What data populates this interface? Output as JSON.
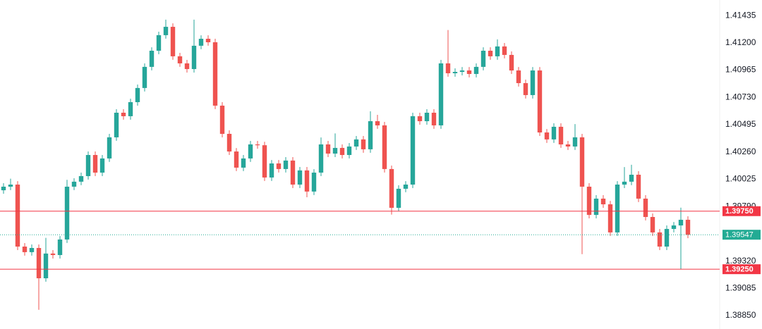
{
  "chart_data": {
    "type": "candlestick",
    "up_color": "#26a69a",
    "down_color": "#ef5350",
    "ylim": [
      1.38735,
      1.41569
    ],
    "yticks": [
      1.41435,
      {
        "value": 1.412,
        "label": "1.41200"
      },
      1.40965,
      {
        "value": 1.4073,
        "label": "1.40730"
      },
      1.40495,
      {
        "value": 1.4026,
        "label": "1.40260"
      },
      1.40025,
      {
        "value": 1.3979,
        "label": "1.39790"
      },
      {
        "value": 1.3932,
        "label": "1.39320"
      },
      1.39085,
      {
        "value": 1.3885,
        "label": "1.38850"
      }
    ],
    "levels": [
      {
        "value": 1.3975,
        "label": "1.39750",
        "color": "#f23645"
      },
      {
        "value": 1.3925,
        "label": "1.39250",
        "color": "#f23645"
      }
    ],
    "last_price": {
      "value": 1.39547,
      "color": "#22ab94"
    },
    "open": [
      1.3993,
      1.39961,
      1.39979,
      1.39445,
      1.39397,
      1.39433,
      1.39172,
      1.39385,
      1.39372,
      1.39506,
      1.39961,
      1.40004,
      1.40052,
      1.40234,
      1.40082,
      1.40204,
      1.40386,
      1.40598,
      1.40568,
      1.40689,
      1.40811,
      1.40993,
      1.41132,
      1.41266,
      1.41338,
      1.41084,
      1.41023,
      1.40974,
      1.41175,
      1.41235,
      1.41205,
      1.40659,
      1.40416,
      1.40264,
      1.40125,
      1.40204,
      1.40325,
      1.40318,
      1.4004,
      1.40161,
      1.40113,
      1.40186,
      1.39979,
      1.40101,
      1.39919,
      1.40082,
      1.40325,
      1.40246,
      1.40295,
      1.40234,
      1.40307,
      1.40368,
      1.40283,
      1.40525,
      1.40489,
      1.40113,
      1.39779,
      1.39943,
      1.39979,
      1.40568,
      1.40525,
      1.40598,
      1.40489,
      1.41023,
      1.40938,
      1.4095,
      1.40962,
      1.40932,
      1.40993,
      1.41132,
      1.41084,
      1.41169,
      1.41096,
      1.40962,
      1.40853,
      1.4075,
      1.40962,
      1.40428,
      1.40368,
      1.40477,
      1.40325,
      1.40307,
      1.40386,
      1.39961,
      1.39718,
      1.39858,
      1.39809,
      1.39567,
      1.39979,
      1.40004,
      1.40064,
      1.39858,
      1.397,
      1.39567,
      1.39445,
      1.39597,
      1.39627,
      1.39676
    ],
    "high": [
      1.39991,
      1.4003,
      1.40009,
      1.39475,
      1.39463,
      1.39463,
      1.3952,
      1.39415,
      1.39536,
      1.4002,
      1.40034,
      1.40082,
      1.40264,
      1.40264,
      1.40234,
      1.40416,
      1.40628,
      1.40628,
      1.40719,
      1.40841,
      1.41023,
      1.41162,
      1.41296,
      1.414,
      1.41368,
      1.41114,
      1.41053,
      1.414,
      1.41265,
      1.41265,
      1.41235,
      1.40689,
      1.40446,
      1.40294,
      1.40234,
      1.40355,
      1.40355,
      1.40348,
      1.40191,
      1.40191,
      1.40216,
      1.40216,
      1.40131,
      1.40131,
      1.40112,
      1.40385,
      1.40355,
      1.4042,
      1.40325,
      1.40337,
      1.40398,
      1.40398,
      1.4061,
      1.4058,
      1.40519,
      1.40143,
      1.39973,
      1.40009,
      1.40598,
      1.40598,
      1.40628,
      1.40628,
      1.41053,
      1.4131,
      1.4098,
      1.40992,
      1.40992,
      1.41023,
      1.41162,
      1.41162,
      1.4123,
      1.41199,
      1.41126,
      1.40992,
      1.40883,
      1.40992,
      1.40992,
      1.40458,
      1.40507,
      1.40507,
      1.40355,
      1.405,
      1.40416,
      1.39991,
      1.39888,
      1.39888,
      1.39839,
      1.40009,
      1.4013,
      1.4015,
      1.40094,
      1.39888,
      1.3973,
      1.39597,
      1.39627,
      1.39657,
      1.3978,
      1.39706
    ],
    "low": [
      1.399,
      1.39931,
      1.39415,
      1.39367,
      1.39367,
      1.389,
      1.39142,
      1.39342,
      1.39342,
      1.39476,
      1.39931,
      1.39974,
      1.40022,
      1.40052,
      1.40052,
      1.40174,
      1.40356,
      1.40538,
      1.40538,
      1.40659,
      1.40781,
      1.40963,
      1.41102,
      1.41236,
      1.41054,
      1.40993,
      1.40944,
      1.40944,
      1.41145,
      1.41175,
      1.40629,
      1.40386,
      1.40234,
      1.40095,
      1.40095,
      1.40174,
      1.40288,
      1.4001,
      1.4001,
      1.40083,
      1.40083,
      1.39949,
      1.39949,
      1.3987,
      1.39889,
      1.40052,
      1.40216,
      1.40216,
      1.40204,
      1.40204,
      1.40277,
      1.40253,
      1.40253,
      1.40459,
      1.40083,
      1.3972,
      1.39749,
      1.39913,
      1.39949,
      1.40495,
      1.40495,
      1.40459,
      1.40459,
      1.40908,
      1.40908,
      1.4092,
      1.40902,
      1.40902,
      1.40963,
      1.41054,
      1.41054,
      1.41066,
      1.40932,
      1.40823,
      1.4072,
      1.4072,
      1.40398,
      1.40338,
      1.40338,
      1.40295,
      1.40277,
      1.40277,
      1.3938,
      1.39688,
      1.39688,
      1.39779,
      1.39537,
      1.39537,
      1.39949,
      1.39974,
      1.39828,
      1.3967,
      1.39537,
      1.39415,
      1.39415,
      1.39567,
      1.3925,
      1.39517
    ],
    "close": [
      1.39961,
      1.39979,
      1.39445,
      1.39397,
      1.39433,
      1.39172,
      1.39385,
      1.39372,
      1.39506,
      1.39961,
      1.40004,
      1.40052,
      1.40234,
      1.40082,
      1.40204,
      1.40386,
      1.40598,
      1.40568,
      1.40689,
      1.40811,
      1.40993,
      1.41132,
      1.41266,
      1.41338,
      1.41084,
      1.41023,
      1.40974,
      1.41175,
      1.41235,
      1.41205,
      1.40659,
      1.40416,
      1.40264,
      1.40125,
      1.40204,
      1.40325,
      1.40318,
      1.4004,
      1.40161,
      1.40113,
      1.40186,
      1.39979,
      1.40101,
      1.39919,
      1.40082,
      1.40325,
      1.40246,
      1.40295,
      1.40234,
      1.40307,
      1.40368,
      1.40283,
      1.40525,
      1.40489,
      1.40113,
      1.39779,
      1.39943,
      1.39979,
      1.40568,
      1.40525,
      1.40598,
      1.40489,
      1.41023,
      1.40938,
      1.4095,
      1.40962,
      1.40932,
      1.40993,
      1.41132,
      1.41084,
      1.41169,
      1.41096,
      1.40962,
      1.40853,
      1.4075,
      1.40962,
      1.40428,
      1.40368,
      1.40477,
      1.40325,
      1.40307,
      1.40386,
      1.39961,
      1.39718,
      1.39858,
      1.39809,
      1.39567,
      1.39979,
      1.40004,
      1.40064,
      1.39858,
      1.397,
      1.39567,
      1.39445,
      1.39597,
      1.39627,
      1.39676,
      1.39547
    ]
  }
}
